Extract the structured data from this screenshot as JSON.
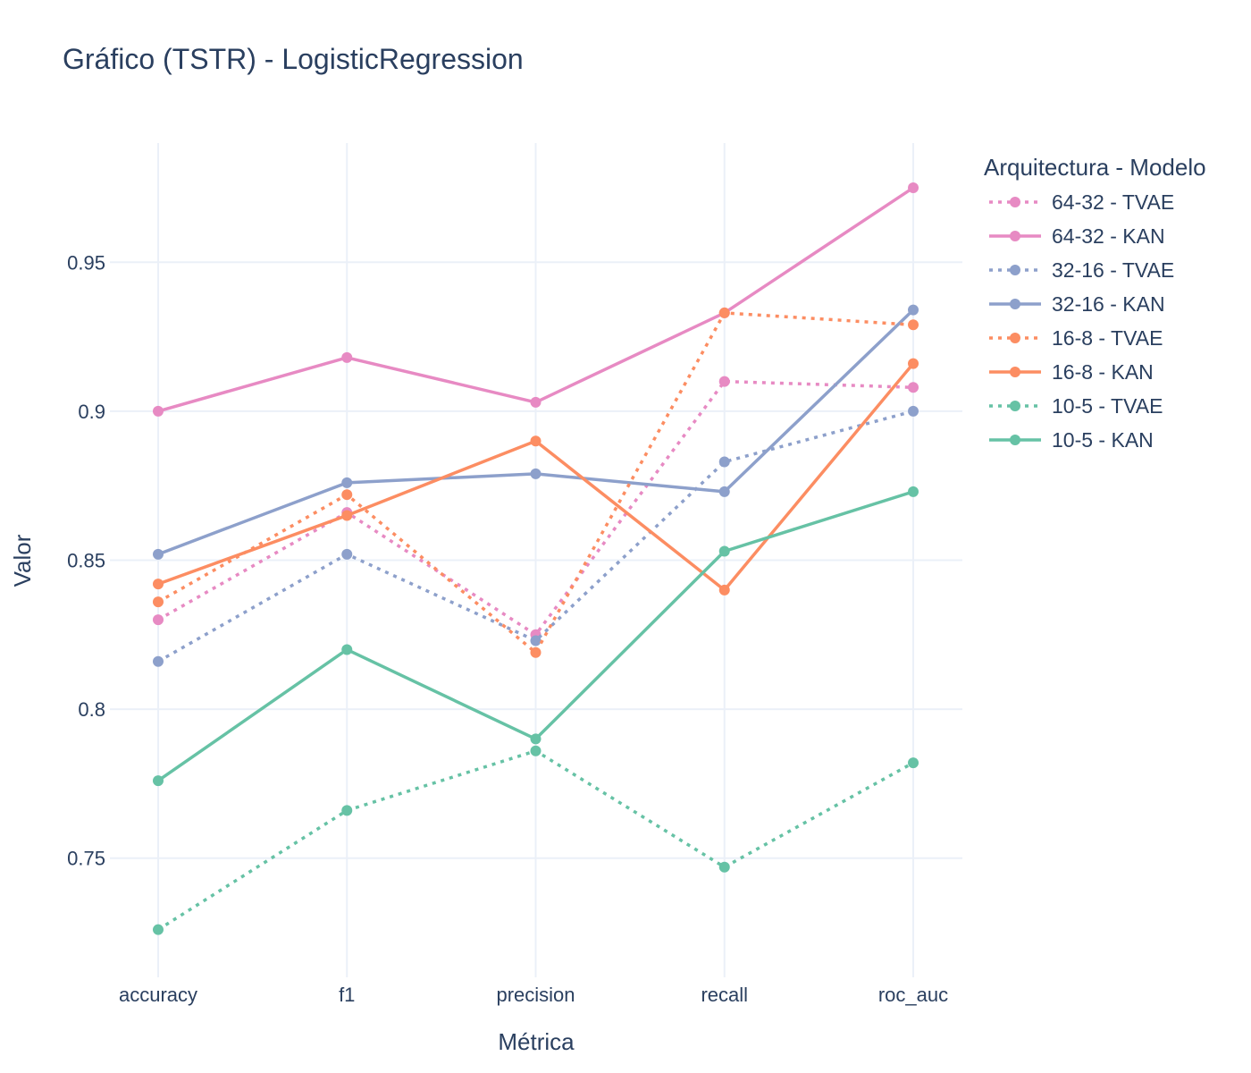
{
  "chart_data": {
    "type": "line",
    "title": "Gráfico (TSTR) - LogisticRegression",
    "xlabel": "Métrica",
    "ylabel": "Valor",
    "categories": [
      "accuracy",
      "f1",
      "precision",
      "recall",
      "roc_auc"
    ],
    "ylim": [
      0.71,
      0.99
    ],
    "yticks": [
      0.75,
      0.8,
      0.85,
      0.9,
      0.95
    ],
    "ytick_labels": [
      "0.75",
      "0.8",
      "0.85",
      "0.9",
      "0.95"
    ],
    "grid": true,
    "legend_title": "Arquitectura - Modelo",
    "legend_position": "right",
    "series": [
      {
        "name": "64-32 - TVAE",
        "color": "#e78ac3",
        "dash": "dot",
        "values": [
          0.83,
          0.866,
          0.825,
          0.91,
          0.908
        ]
      },
      {
        "name": "64-32 - KAN",
        "color": "#e78ac3",
        "dash": "solid",
        "values": [
          0.9,
          0.918,
          0.903,
          0.933,
          0.975
        ]
      },
      {
        "name": "32-16 - TVAE",
        "color": "#8da0cb",
        "dash": "dot",
        "values": [
          0.816,
          0.852,
          0.823,
          0.883,
          0.9
        ]
      },
      {
        "name": "32-16 - KAN",
        "color": "#8da0cb",
        "dash": "solid",
        "values": [
          0.852,
          0.876,
          0.879,
          0.873,
          0.934
        ]
      },
      {
        "name": "16-8 - TVAE",
        "color": "#fc8d62",
        "dash": "dot",
        "values": [
          0.836,
          0.872,
          0.819,
          0.933,
          0.929
        ]
      },
      {
        "name": "16-8 - KAN",
        "color": "#fc8d62",
        "dash": "solid",
        "values": [
          0.842,
          0.865,
          0.89,
          0.84,
          0.916
        ]
      },
      {
        "name": "10-5 - TVAE",
        "color": "#66c2a5",
        "dash": "dot",
        "values": [
          0.726,
          0.766,
          0.786,
          0.747,
          0.782
        ]
      },
      {
        "name": "10-5 - KAN",
        "color": "#66c2a5",
        "dash": "solid",
        "values": [
          0.776,
          0.82,
          0.79,
          0.853,
          0.873
        ]
      }
    ]
  }
}
